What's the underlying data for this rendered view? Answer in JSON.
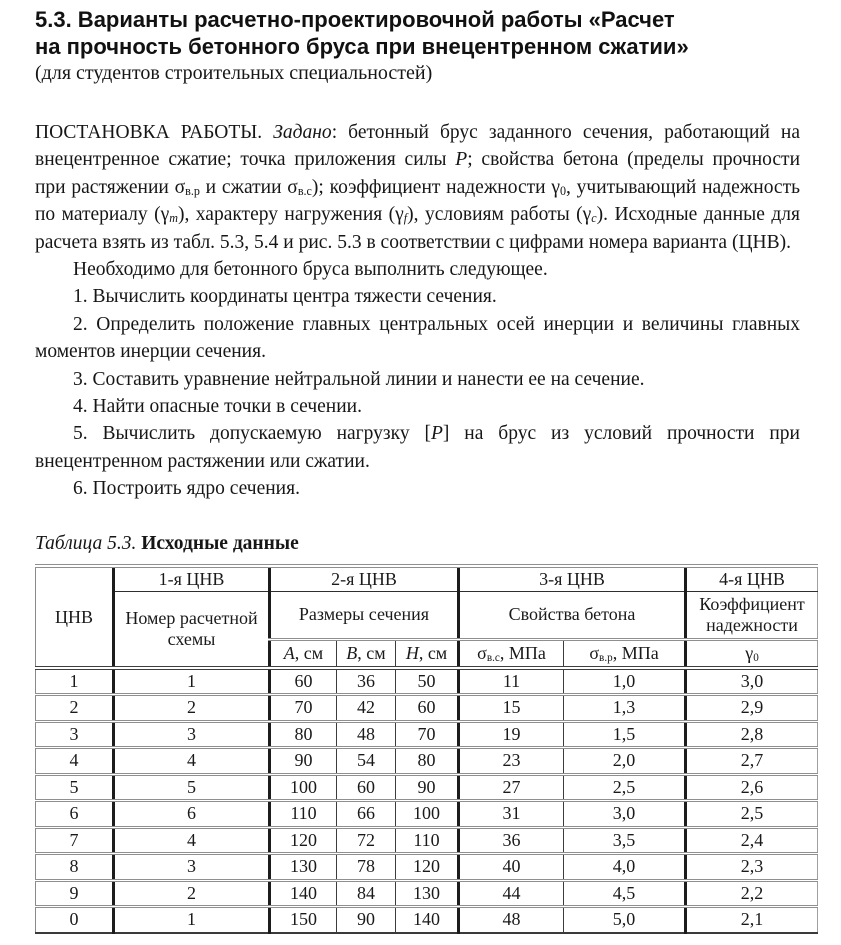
{
  "title": {
    "line1": "5.3. Варианты расчетно-проектировочной работы «Расчет",
    "line2": "на прочность бетонного бруса при внецентренном сжатии»",
    "subtitle": "(для студентов строительных специальностей)"
  },
  "intro_rich": [
    {
      "t": "ПОСТАНОВКА РАБОТЫ. "
    },
    {
      "t": "Задано",
      "i": true
    },
    {
      "t": ": бетонный брус заданного сечения, работающий на внецентренное сжатие; точка приложения силы "
    },
    {
      "t": "P",
      "i": true
    },
    {
      "t": "; свойства бетона (пределы прочности при растяжении σ"
    },
    {
      "t": "в.р",
      "sub": true
    },
    {
      "t": " и сжатии σ"
    },
    {
      "t": "в.с",
      "sub": true
    },
    {
      "t": "); коэффициент надежности γ"
    },
    {
      "t": "0",
      "sub": true
    },
    {
      "t": ", учитывающий надежность по материалу (γ"
    },
    {
      "t": "m",
      "sub": true,
      "i": true
    },
    {
      "t": "), характеру нагружения (γ"
    },
    {
      "t": "f",
      "sub": true,
      "i": true
    },
    {
      "t": "), условиям работы (γ"
    },
    {
      "t": "c",
      "sub": true,
      "i": true
    },
    {
      "t": "). Исходные данные для расчета взять из табл. 5.3, 5.4 и рис. 5.3 в соответствии с цифрами номера варианта (ЦНВ)."
    }
  ],
  "tasks": {
    "lead": "Необходимо для бетонного бруса выполнить следующее.",
    "items": [
      [
        {
          "t": "1. Вычислить координаты центра тяжести сечения."
        }
      ],
      [
        {
          "t": "2. Определить положение главных центральных осей инерции и величины главных моментов инерции сечения."
        }
      ],
      [
        {
          "t": "3. Составить уравнение нейтральной линии и нанести ее на сечение."
        }
      ],
      [
        {
          "t": "4. Найти опасные точки в сечении."
        }
      ],
      [
        {
          "t": "5. Вычислить допускаемую нагрузку ["
        },
        {
          "t": "P",
          "i": true
        },
        {
          "t": "] на брус из условий прочности при внецентренном растяжении или сжатии."
        }
      ],
      [
        {
          "t": "6. Построить ядро сечения."
        }
      ]
    ]
  },
  "table": {
    "caption_label": "Таблица 5.3.",
    "caption_title": "Исходные данные",
    "header": {
      "cnv": "ЦНВ",
      "g1": "1-я ЦНВ",
      "g2": "2-я ЦНВ",
      "g3": "3-я ЦНВ",
      "g4": "4-я ЦНВ",
      "scheme": "Номер расчетной схемы",
      "sizes": "Размеры сечения",
      "concrete": "Свойства бетона",
      "safety": "Коэффициент надежности",
      "a": [
        {
          "t": "A",
          "i": true
        },
        {
          "t": ", см"
        }
      ],
      "b": [
        {
          "t": "B",
          "i": true
        },
        {
          "t": ", см"
        }
      ],
      "h": [
        {
          "t": "H",
          "i": true
        },
        {
          "t": ", см"
        }
      ],
      "sigma_c": [
        {
          "t": "σ"
        },
        {
          "t": "в.с",
          "sub": true
        },
        {
          "t": ", МПа"
        }
      ],
      "sigma_p": [
        {
          "t": "σ"
        },
        {
          "t": "в.р",
          "sub": true
        },
        {
          "t": ", МПа"
        }
      ],
      "gamma0": [
        {
          "t": "γ"
        },
        {
          "t": "0",
          "sub": true
        }
      ]
    },
    "rows": [
      [
        "1",
        "1",
        "60",
        "36",
        "50",
        "11",
        "1,0",
        "3,0"
      ],
      [
        "2",
        "2",
        "70",
        "42",
        "60",
        "15",
        "1,3",
        "2,9"
      ],
      [
        "3",
        "3",
        "80",
        "48",
        "70",
        "19",
        "1,5",
        "2,8"
      ],
      [
        "4",
        "4",
        "90",
        "54",
        "80",
        "23",
        "2,0",
        "2,7"
      ],
      [
        "5",
        "5",
        "100",
        "60",
        "90",
        "27",
        "2,5",
        "2,6"
      ],
      [
        "6",
        "6",
        "110",
        "66",
        "100",
        "31",
        "3,0",
        "2,5"
      ],
      [
        "7",
        "4",
        "120",
        "72",
        "110",
        "36",
        "3,5",
        "2,4"
      ],
      [
        "8",
        "3",
        "130",
        "78",
        "120",
        "40",
        "4,0",
        "2,3"
      ],
      [
        "9",
        "2",
        "140",
        "84",
        "130",
        "44",
        "4,5",
        "2,2"
      ],
      [
        "0",
        "1",
        "150",
        "90",
        "140",
        "48",
        "5,0",
        "2,1"
      ]
    ]
  }
}
